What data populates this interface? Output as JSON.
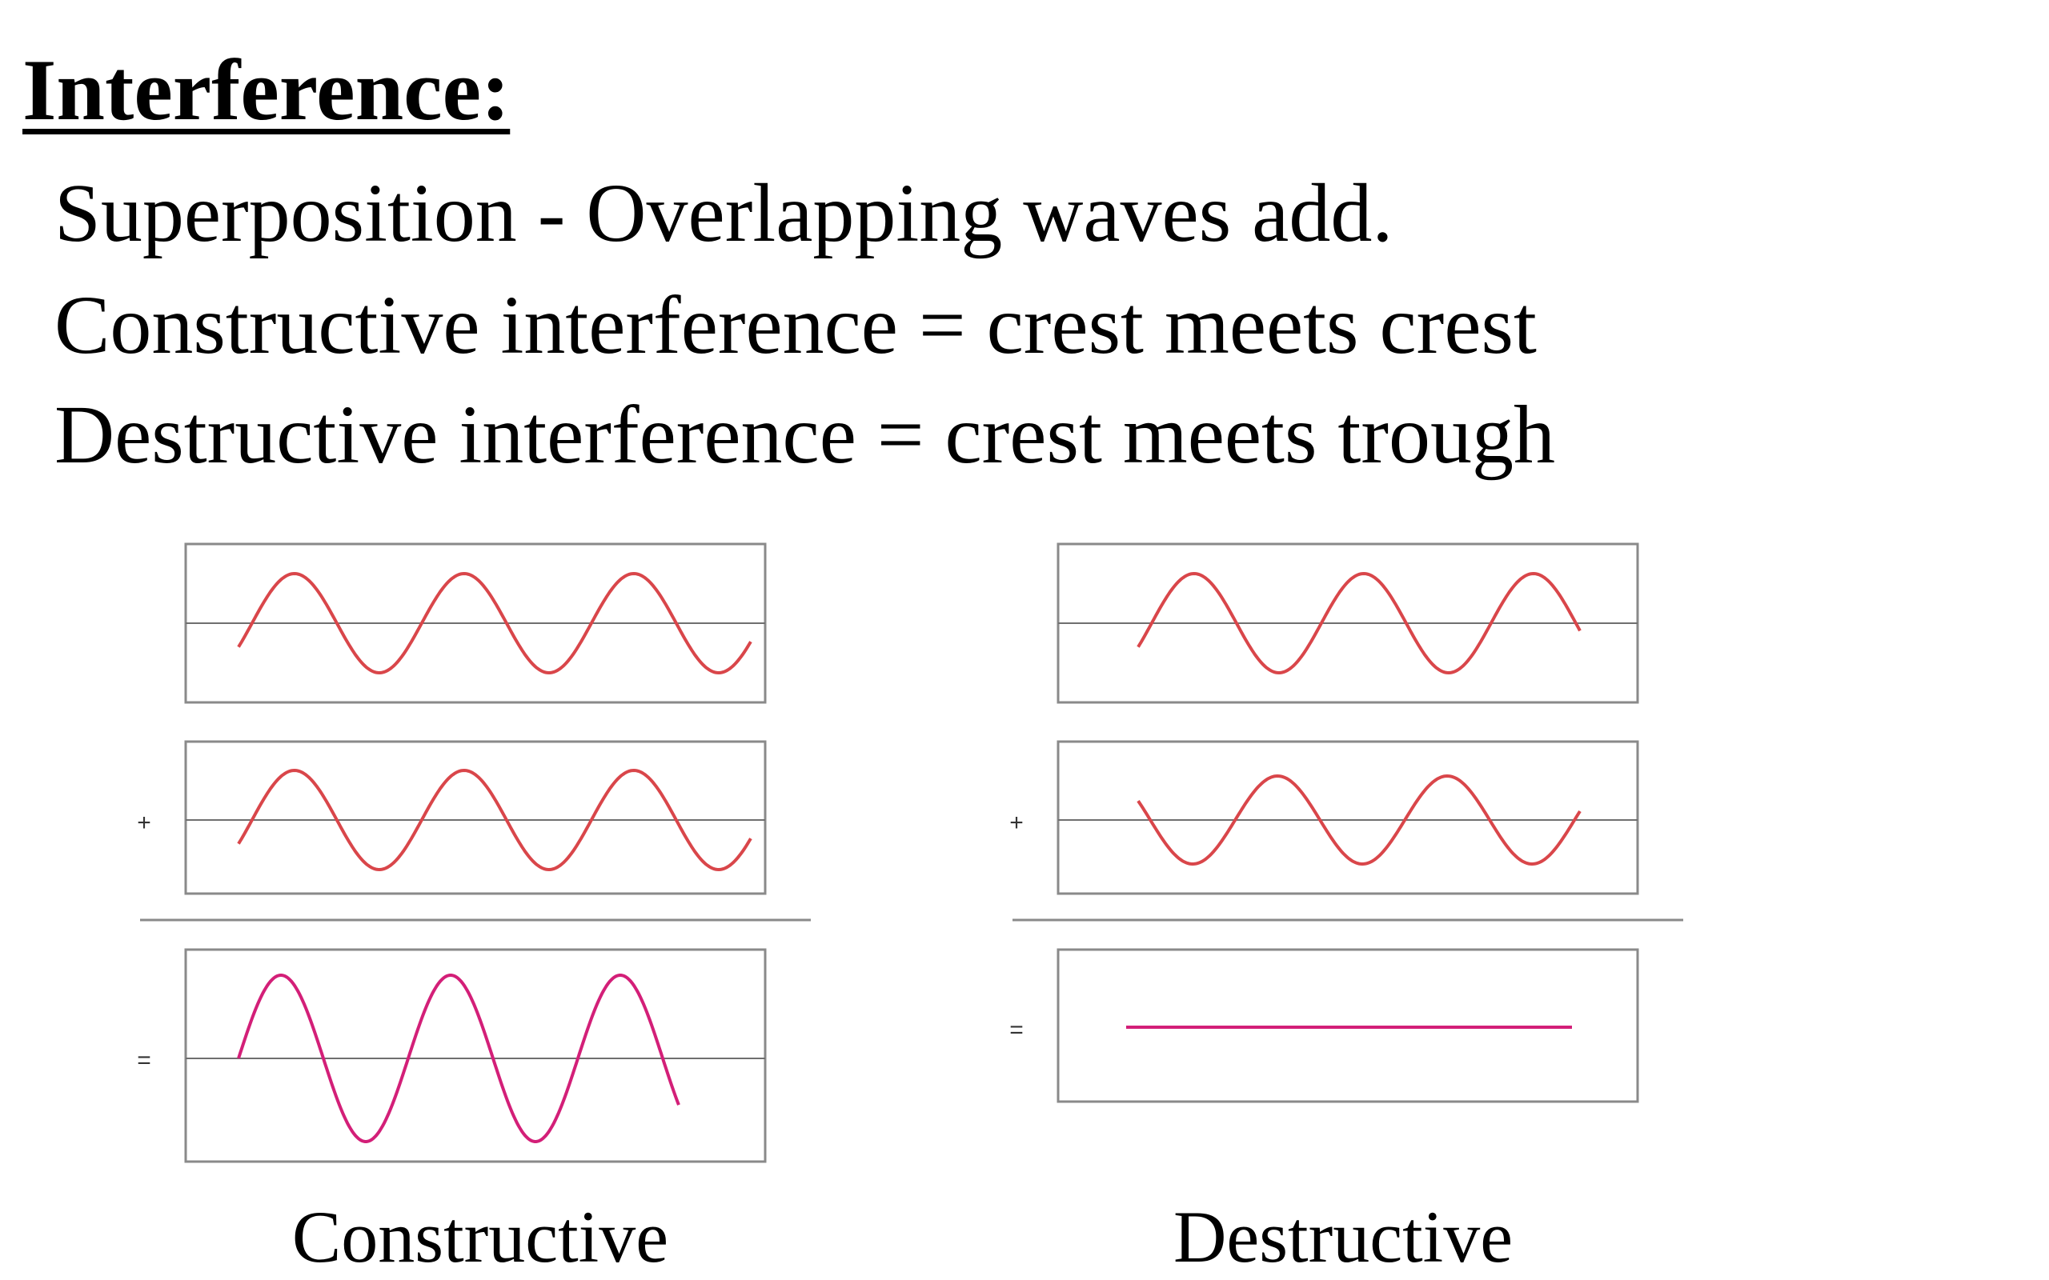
{
  "heading": "Interference:",
  "lines": [
    "Superposition - Overlapping waves add.",
    "Constructive interference = crest meets crest",
    "Destructive interference = crest meets trough"
  ],
  "operators": {
    "plus": "+",
    "equals": "="
  },
  "panels": [
    {
      "caption": "Constructive",
      "wave1": {
        "amplitude": 1,
        "phase": "in-phase"
      },
      "wave2": {
        "amplitude": 1,
        "phase": "in-phase"
      },
      "result": {
        "amplitude": 2
      }
    },
    {
      "caption": "Destructive",
      "wave1": {
        "amplitude": 1,
        "phase": "in-phase"
      },
      "wave2": {
        "amplitude": 1,
        "phase": "inverted"
      },
      "result": {
        "amplitude": 0
      }
    }
  ],
  "colors": {
    "wave": "#d9464a",
    "result": "#d31f78",
    "frame": "#8a8a8a",
    "axis": "#6f6f6f"
  }
}
